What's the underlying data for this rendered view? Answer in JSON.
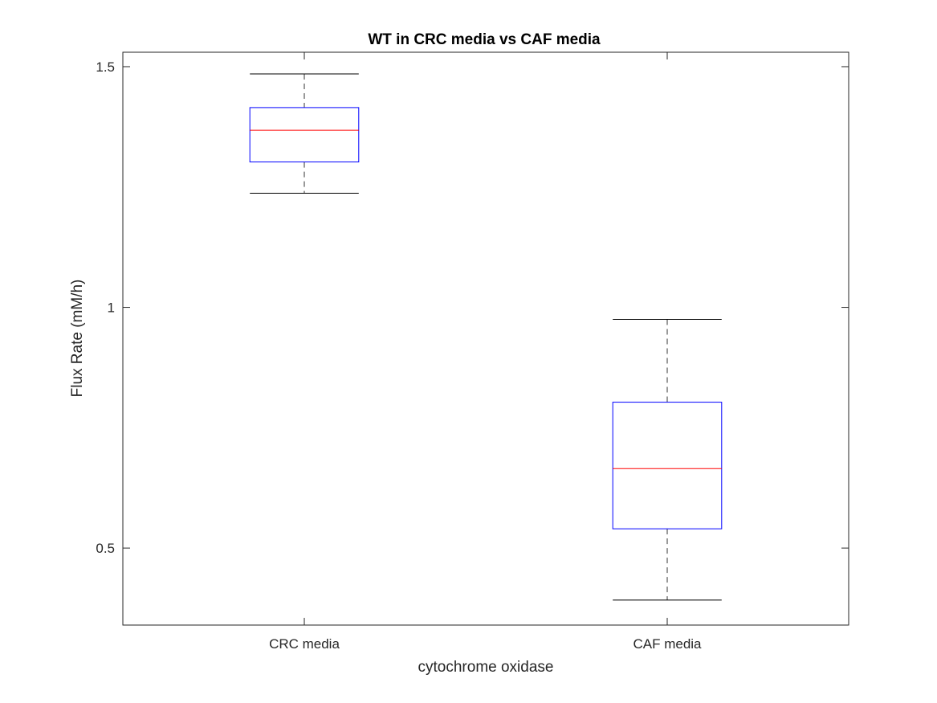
{
  "chart_data": {
    "type": "boxplot",
    "title": "WT in CRC media vs CAF media",
    "xlabel": "cytochrome oxidase",
    "ylabel": "Flux Rate (mM/h)",
    "ylim": [
      0.34,
      1.53
    ],
    "yticks": [
      0.5,
      1,
      1.5
    ],
    "ytick_labels": [
      "0.5",
      "1",
      "1.5"
    ],
    "grid": false,
    "categories": [
      "CRC media",
      "CAF media"
    ],
    "boxes": [
      {
        "name": "CRC media",
        "whisker_low": 1.237,
        "q1": 1.302,
        "median": 1.368,
        "q3": 1.415,
        "whisker_high": 1.485
      },
      {
        "name": "CAF media",
        "whisker_low": 0.392,
        "q1": 0.54,
        "median": 0.665,
        "q3": 0.803,
        "whisker_high": 0.975
      }
    ],
    "colors": {
      "box": "#0000ff",
      "median": "#ff0000",
      "whisker": "#000000",
      "axis": "#262626"
    }
  }
}
